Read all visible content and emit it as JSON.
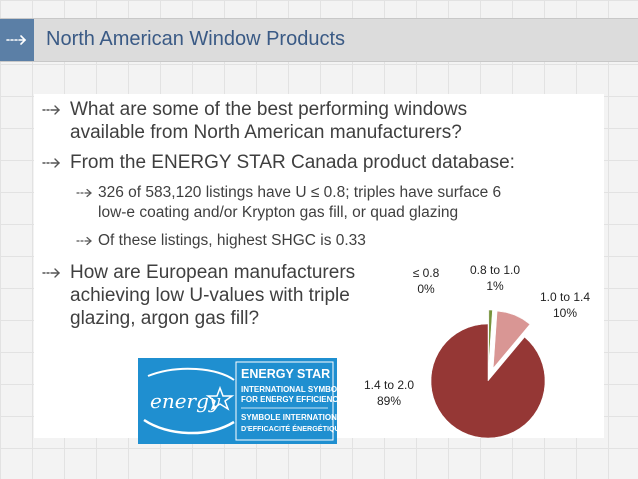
{
  "slide": {
    "title": "North American Window Products"
  },
  "bullets": [
    {
      "level": 1,
      "lines": [
        "What are some of the best performing windows",
        "available from North American manufacturers?"
      ]
    },
    {
      "level": 1,
      "lines": [
        "From the ENERGY STAR Canada product database:"
      ]
    },
    {
      "level": 2,
      "lines": [
        "326 of 583,120 listings have U ≤ 0.8; triples have surface 6",
        "low-e coating and/or Krypton gas fill, or quad glazing"
      ]
    },
    {
      "level": 2,
      "lines": [
        "Of these listings, highest SHGC is 0.33"
      ]
    },
    {
      "level": 1,
      "lines": [
        "How are European manufacturers",
        "achieving low U-values with triple",
        "glazing, argon gas fill?"
      ]
    }
  ],
  "logo": {
    "line1": "ENERGY STAR",
    "line2": "INTERNATIONAL SYMBOL",
    "line3": "FOR ENERGY EFFICIENCY",
    "line4": "SYMBOLE INTERNATIONAL",
    "line5": "D'EFFICACITÉ ÉNERGÉTIQUE",
    "script": "energy"
  },
  "chart_data": {
    "type": "pie",
    "title": "",
    "slices": [
      {
        "label": "≤ 0.8",
        "pct_label": "0%",
        "value": 0.1,
        "color": "#4f6228",
        "exploded": true
      },
      {
        "label": "0.8 to 1.0",
        "pct_label": "1%",
        "value": 1,
        "color": "#77933c",
        "exploded": true
      },
      {
        "label": "1.0 to 1.4",
        "pct_label": "10%",
        "value": 10,
        "color": "#d99694",
        "exploded": true
      },
      {
        "label": "1.4 to 2.0",
        "pct_label": "89%",
        "value": 89,
        "color": "#953735",
        "exploded": false
      }
    ],
    "legend": "none"
  },
  "colors": {
    "title_text": "#3a5a85",
    "title_accent": "#5b7fa6",
    "logo_blue": "#1f8fd0"
  }
}
